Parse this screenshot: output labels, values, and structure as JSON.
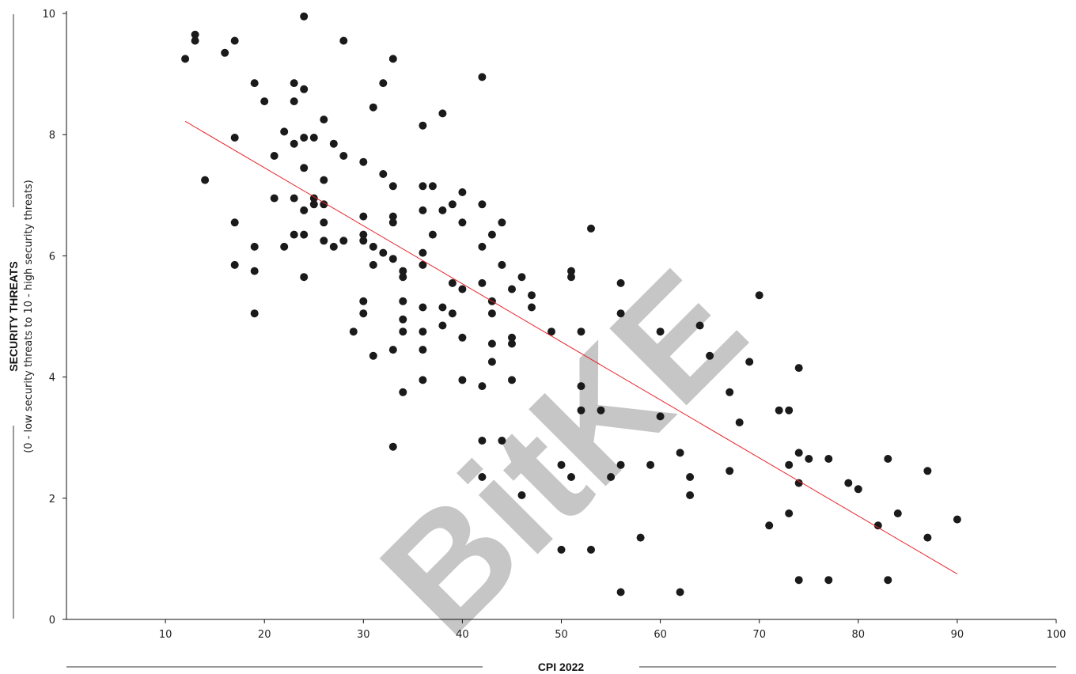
{
  "chart_data": {
    "type": "scatter",
    "xlabel": "CPI 2022",
    "ylabel": "SECURITY THREATS",
    "ylabel_sub": "(0 - low security threats to 10 - high security threats)",
    "xlim": [
      0,
      100
    ],
    "ylim": [
      0,
      10
    ],
    "x_ticks": [
      "10",
      "20",
      "30",
      "40",
      "50",
      "60",
      "70",
      "80",
      "90",
      "100"
    ],
    "y_ticks": [
      "0",
      "2",
      "4",
      "6",
      "8",
      "10"
    ],
    "grid": false,
    "marker_color": "#1a1a1a",
    "trendline": {
      "x": [
        12,
        90
      ],
      "y": [
        8.22,
        0.75
      ],
      "color": "#e8242c"
    },
    "watermark": "BitKE",
    "points": [
      [
        12,
        9.25
      ],
      [
        13,
        9.65
      ],
      [
        13,
        9.55
      ],
      [
        14,
        7.25
      ],
      [
        16,
        9.35
      ],
      [
        17,
        9.55
      ],
      [
        17,
        7.95
      ],
      [
        17,
        6.55
      ],
      [
        17,
        5.85
      ],
      [
        19,
        8.85
      ],
      [
        19,
        6.15
      ],
      [
        19,
        5.75
      ],
      [
        19,
        5.05
      ],
      [
        20,
        8.55
      ],
      [
        21,
        7.65
      ],
      [
        21,
        6.95
      ],
      [
        22,
        8.05
      ],
      [
        22,
        6.15
      ],
      [
        23,
        8.85
      ],
      [
        23,
        8.55
      ],
      [
        23,
        7.85
      ],
      [
        23,
        6.95
      ],
      [
        23,
        6.35
      ],
      [
        24,
        9.95
      ],
      [
        24,
        8.75
      ],
      [
        24,
        7.95
      ],
      [
        24,
        7.45
      ],
      [
        24,
        6.75
      ],
      [
        24,
        6.35
      ],
      [
        24,
        5.65
      ],
      [
        25,
        7.95
      ],
      [
        25,
        6.95
      ],
      [
        25,
        6.85
      ],
      [
        26,
        8.25
      ],
      [
        26,
        7.25
      ],
      [
        26,
        6.85
      ],
      [
        26,
        6.55
      ],
      [
        26,
        6.25
      ],
      [
        27,
        7.85
      ],
      [
        27,
        6.15
      ],
      [
        28,
        9.55
      ],
      [
        28,
        7.65
      ],
      [
        28,
        6.25
      ],
      [
        29,
        4.75
      ],
      [
        30,
        7.55
      ],
      [
        30,
        6.65
      ],
      [
        30,
        6.35
      ],
      [
        30,
        6.25
      ],
      [
        30,
        5.25
      ],
      [
        30,
        5.05
      ],
      [
        31,
        8.45
      ],
      [
        31,
        6.15
      ],
      [
        31,
        5.85
      ],
      [
        31,
        4.35
      ],
      [
        32,
        8.85
      ],
      [
        32,
        7.35
      ],
      [
        32,
        6.05
      ],
      [
        33,
        9.25
      ],
      [
        33,
        7.15
      ],
      [
        33,
        6.65
      ],
      [
        33,
        6.55
      ],
      [
        33,
        5.95
      ],
      [
        33,
        4.45
      ],
      [
        33,
        2.85
      ],
      [
        34,
        5.75
      ],
      [
        34,
        5.65
      ],
      [
        34,
        5.25
      ],
      [
        34,
        4.95
      ],
      [
        34,
        4.75
      ],
      [
        34,
        3.75
      ],
      [
        36,
        8.15
      ],
      [
        36,
        7.15
      ],
      [
        36,
        6.75
      ],
      [
        36,
        6.05
      ],
      [
        36,
        5.85
      ],
      [
        36,
        5.15
      ],
      [
        36,
        4.75
      ],
      [
        36,
        4.45
      ],
      [
        36,
        3.95
      ],
      [
        37,
        7.15
      ],
      [
        37,
        6.35
      ],
      [
        38,
        8.35
      ],
      [
        38,
        6.75
      ],
      [
        38,
        5.15
      ],
      [
        38,
        4.85
      ],
      [
        39,
        6.85
      ],
      [
        39,
        5.55
      ],
      [
        39,
        5.05
      ],
      [
        40,
        7.05
      ],
      [
        40,
        6.55
      ],
      [
        40,
        5.45
      ],
      [
        40,
        4.65
      ],
      [
        40,
        3.95
      ],
      [
        42,
        8.95
      ],
      [
        42,
        6.85
      ],
      [
        42,
        6.15
      ],
      [
        42,
        5.55
      ],
      [
        42,
        3.85
      ],
      [
        42,
        2.95
      ],
      [
        42,
        2.35
      ],
      [
        43,
        6.35
      ],
      [
        43,
        5.25
      ],
      [
        43,
        5.05
      ],
      [
        43,
        4.55
      ],
      [
        43,
        4.25
      ],
      [
        44,
        6.55
      ],
      [
        44,
        5.85
      ],
      [
        44,
        2.95
      ],
      [
        45,
        5.45
      ],
      [
        45,
        4.65
      ],
      [
        45,
        4.55
      ],
      [
        45,
        3.95
      ],
      [
        46,
        5.65
      ],
      [
        46,
        2.05
      ],
      [
        47,
        5.35
      ],
      [
        47,
        5.15
      ],
      [
        49,
        4.75
      ],
      [
        50,
        2.55
      ],
      [
        50,
        1.15
      ],
      [
        51,
        5.75
      ],
      [
        51,
        5.65
      ],
      [
        51,
        2.35
      ],
      [
        52,
        4.75
      ],
      [
        52,
        3.85
      ],
      [
        52,
        3.45
      ],
      [
        53,
        6.45
      ],
      [
        53,
        1.15
      ],
      [
        54,
        3.45
      ],
      [
        55,
        2.35
      ],
      [
        56,
        5.55
      ],
      [
        56,
        5.05
      ],
      [
        56,
        2.55
      ],
      [
        56,
        0.45
      ],
      [
        58,
        1.35
      ],
      [
        59,
        2.55
      ],
      [
        60,
        4.75
      ],
      [
        60,
        3.35
      ],
      [
        62,
        2.75
      ],
      [
        62,
        0.45
      ],
      [
        63,
        2.35
      ],
      [
        63,
        2.05
      ],
      [
        64,
        4.85
      ],
      [
        65,
        4.35
      ],
      [
        67,
        3.75
      ],
      [
        67,
        2.45
      ],
      [
        68,
        3.25
      ],
      [
        69,
        4.25
      ],
      [
        70,
        5.35
      ],
      [
        71,
        1.55
      ],
      [
        72,
        3.45
      ],
      [
        73,
        3.45
      ],
      [
        73,
        2.55
      ],
      [
        73,
        1.75
      ],
      [
        74,
        4.15
      ],
      [
        74,
        2.75
      ],
      [
        74,
        2.25
      ],
      [
        74,
        0.65
      ],
      [
        75,
        2.65
      ],
      [
        77,
        2.65
      ],
      [
        77,
        0.65
      ],
      [
        79,
        2.25
      ],
      [
        80,
        2.15
      ],
      [
        82,
        1.55
      ],
      [
        83,
        2.65
      ],
      [
        83,
        0.65
      ],
      [
        84,
        1.75
      ],
      [
        87,
        2.45
      ],
      [
        87,
        1.35
      ],
      [
        90,
        1.65
      ]
    ]
  }
}
